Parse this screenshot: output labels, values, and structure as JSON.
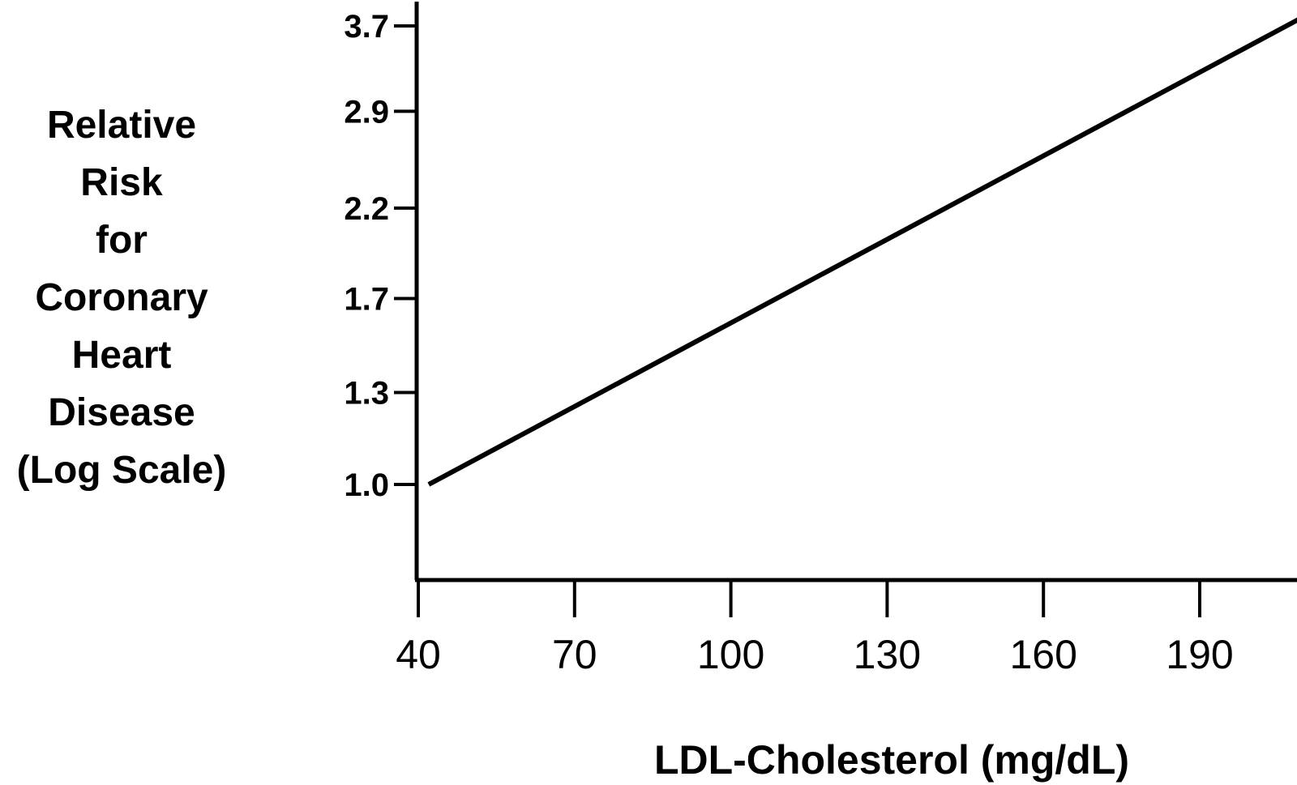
{
  "chart_data": {
    "type": "line",
    "xlabel": "LDL-Cholesterol (mg/dL)",
    "ylabel": [
      "Relative",
      "Risk",
      "for",
      "Coronary",
      "Heart",
      "Disease",
      "(Log Scale)"
    ],
    "x_ticks": [
      "40",
      "70",
      "100",
      "130",
      "160",
      "190"
    ],
    "y_ticks": [
      "1.0",
      "1.3",
      "1.7",
      "2.2",
      "2.9",
      "3.7"
    ],
    "y_scale": "log",
    "xlim": [
      40,
      210
    ],
    "ylim": [
      0.75,
      3.8
    ],
    "grid": false,
    "series": [
      {
        "x": [
          42,
          210
        ],
        "y": [
          1.0,
          3.8
        ]
      }
    ]
  }
}
